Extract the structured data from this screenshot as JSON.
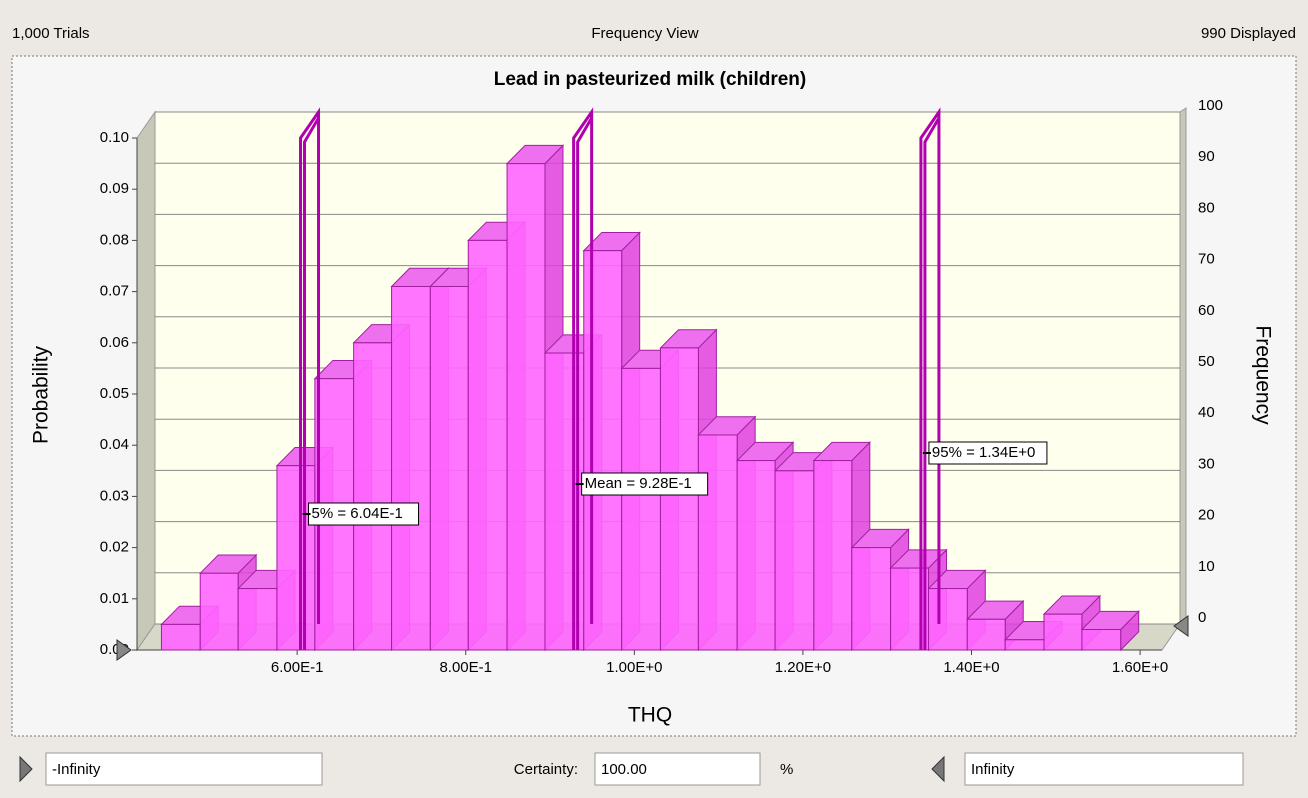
{
  "header": {
    "left": "1,000 Trials",
    "center": "Frequency View",
    "right": "990 Displayed"
  },
  "chart_data": {
    "type": "histogram",
    "title": "Lead in pasteurized milk (children)",
    "xlabel": "THQ",
    "ylabel": "Probability",
    "y2label": "Frequency",
    "bins": [
      0.439,
      0.485,
      0.53,
      0.576,
      0.621,
      0.667,
      0.712,
      0.758,
      0.803,
      0.849,
      0.894,
      0.94,
      0.985,
      1.031,
      1.076,
      1.122,
      1.167,
      1.213,
      1.258,
      1.304,
      1.349,
      1.395,
      1.44,
      1.486,
      1.531,
      1.577
    ],
    "values": [
      0.005,
      0.015,
      0.012,
      0.036,
      0.053,
      0.06,
      0.071,
      0.071,
      0.08,
      0.095,
      0.058,
      0.078,
      0.055,
      0.059,
      0.042,
      0.037,
      0.035,
      0.037,
      0.02,
      0.016,
      0.012,
      0.006,
      0.002,
      0.007,
      0.004
    ],
    "color": "#ff66ff",
    "xlim": [
      0.41,
      1.626
    ],
    "xticks": [
      {
        "value": 0.6,
        "label": "6.00E-1"
      },
      {
        "value": 0.8,
        "label": "8.00E-1"
      },
      {
        "value": 1.0,
        "label": "1.00E+0"
      },
      {
        "value": 1.2,
        "label": "1.20E+0"
      },
      {
        "value": 1.4,
        "label": "1.40E+0"
      },
      {
        "value": 1.6,
        "label": "1.60E+0"
      }
    ],
    "ylim": [
      0,
      0.1
    ],
    "yticks": [
      {
        "value": 0,
        "label": "0.00"
      },
      {
        "value": 0.01,
        "label": "0.01"
      },
      {
        "value": 0.02,
        "label": "0.02"
      },
      {
        "value": 0.03,
        "label": "0.03"
      },
      {
        "value": 0.04,
        "label": "0.04"
      },
      {
        "value": 0.05,
        "label": "0.05"
      },
      {
        "value": 0.06,
        "label": "0.06"
      },
      {
        "value": 0.07,
        "label": "0.07"
      },
      {
        "value": 0.08,
        "label": "0.08"
      },
      {
        "value": 0.09,
        "label": "0.09"
      },
      {
        "value": 0.1,
        "label": "0.10"
      }
    ],
    "y2lim": [
      0,
      100
    ],
    "y2ticks": [
      0,
      10,
      20,
      30,
      40,
      50,
      60,
      70,
      80,
      90,
      100
    ],
    "grid": true,
    "markers": [
      {
        "value": 0.604,
        "label": "5% = 6.04E-1"
      },
      {
        "value": 0.928,
        "label": "Mean = 9.28E-1"
      },
      {
        "value": 1.34,
        "label": "95% = 1.34E+0"
      }
    ],
    "marker_color": "#b000b0"
  },
  "footer": {
    "lower": "-Infinity",
    "certainty_label": "Certainty:",
    "certainty": "100.00",
    "unit": "%",
    "upper": "Infinity"
  }
}
